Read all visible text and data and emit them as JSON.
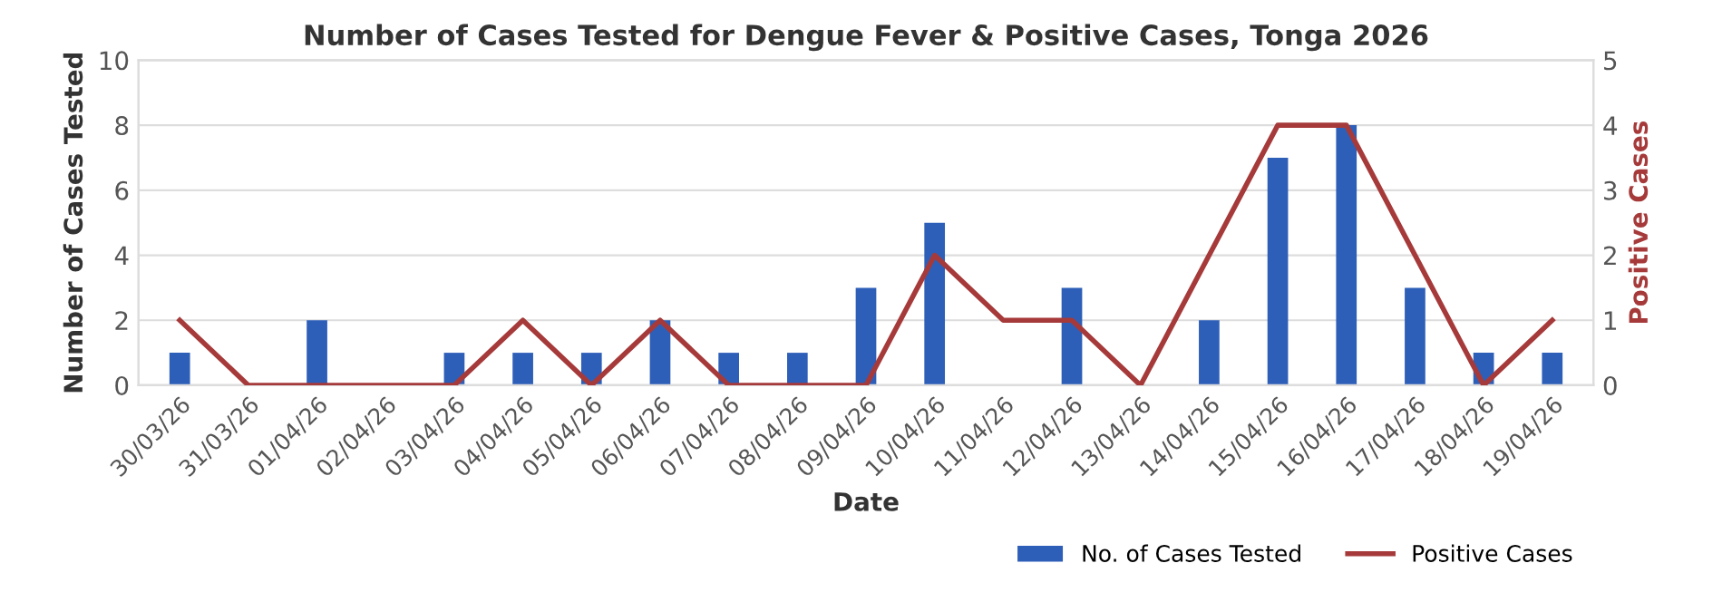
{
  "chart_data": {
    "type": "bar",
    "title": "Number of Cases Tested for Dengue Fever & Positive Cases, Tonga 2026",
    "xlabel": "Date",
    "ylabel": "Number of Cases Tested",
    "y2label": "Positive Cases",
    "categories": [
      "30/03/26",
      "31/03/26",
      "01/04/26",
      "02/04/26",
      "03/04/26",
      "04/04/26",
      "05/04/26",
      "06/04/26",
      "07/04/26",
      "08/04/26",
      "09/04/26",
      "10/04/26",
      "11/04/26",
      "12/04/26",
      "13/04/26",
      "14/04/26",
      "15/04/26",
      "16/04/26",
      "17/04/26",
      "18/04/26",
      "19/04/26"
    ],
    "series": [
      {
        "name": "No. of Cases Tested",
        "color": "#2e5fb8",
        "values": [
          1,
          0,
          2,
          0,
          1,
          1,
          1,
          2,
          1,
          1,
          3,
          5,
          0,
          3,
          0,
          2,
          7,
          8,
          3,
          1,
          1
        ]
      },
      {
        "name": "Positive Cases",
        "type": "line",
        "axis": "y2",
        "color": "#a63a3a",
        "values": [
          1,
          0,
          0,
          0,
          0,
          1,
          0,
          1,
          0,
          0,
          0,
          2,
          1,
          1,
          0,
          2,
          4,
          4,
          2,
          0,
          1
        ]
      }
    ],
    "ylim": [
      0,
      10
    ],
    "yticks": [
      0,
      2,
      4,
      6,
      8,
      10
    ],
    "y2lim": [
      0,
      5
    ],
    "y2ticks": [
      0,
      1,
      2,
      3,
      4,
      5
    ],
    "grid": "y",
    "legend": "bottom right",
    "marker": "none",
    "line_style": "solid"
  }
}
